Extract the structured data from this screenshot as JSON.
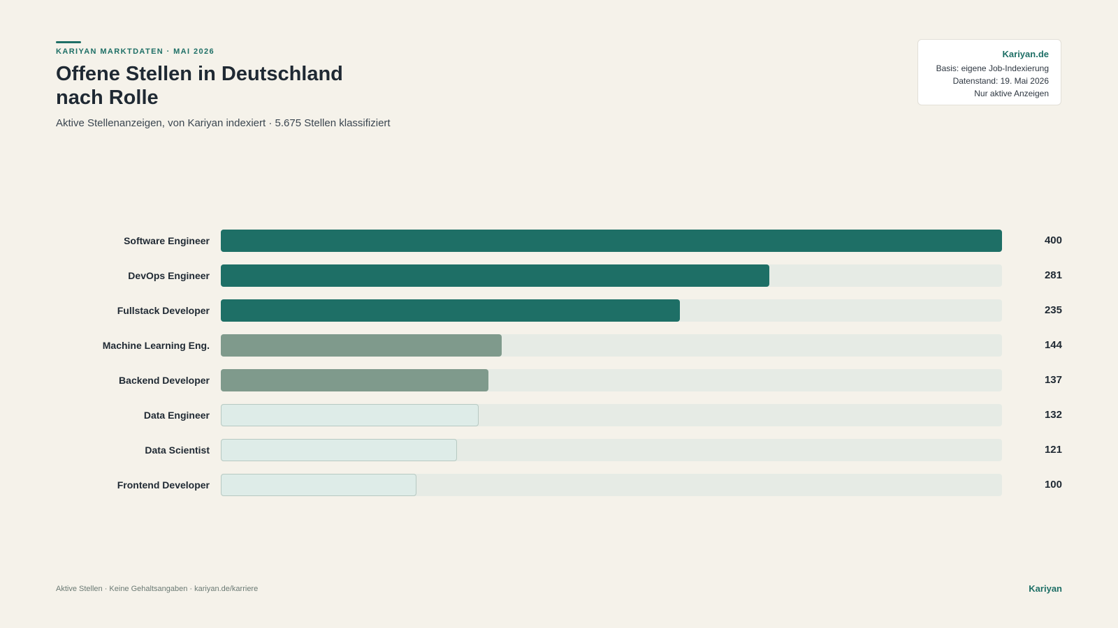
{
  "header": {
    "kicker": "KARIYAN MARKTDATEN · MAI 2026",
    "title": "Offene Stellen in Deutschland nach Rolle",
    "subtitle": "Aktive Stellenanzeigen, von Kariyan indexiert · 5.675 Stellen klassifiziert"
  },
  "info_box": {
    "brand": "Kariyan.de",
    "line1": "Basis: eigene Job-Indexierung",
    "line2": "Datenstand: 19. Mai 2026",
    "line3": "Nur aktive Anzeigen"
  },
  "footer": {
    "left": "Aktive Stellen · Keine Gehaltsangaben · kariyan.de/karriere",
    "right": "Kariyan"
  },
  "colors": {
    "accent": "#1e6f66",
    "tier_high": "#1e6f66",
    "tier_mid": "#7f9a8c",
    "tier_low": "#deece8",
    "tier_low_border": "#b7c9c2",
    "track": "#e6ebe5",
    "background": "#f5f2ea"
  },
  "chart_data": {
    "type": "bar",
    "orientation": "horizontal",
    "categories": [
      "Software Engineer",
      "DevOps Engineer",
      "Fullstack Developer",
      "Machine Learning Eng.",
      "Backend Developer",
      "Data Engineer",
      "Data Scientist",
      "Frontend Developer"
    ],
    "values": [
      400,
      281,
      235,
      144,
      137,
      132,
      121,
      100
    ],
    "tiers": [
      "high",
      "high",
      "high",
      "mid",
      "mid",
      "low",
      "low",
      "low"
    ],
    "xlim": [
      0,
      400
    ],
    "grid": false,
    "legend": "none",
    "title": "Offene Stellen in Deutschland nach Rolle",
    "xlabel": "",
    "ylabel": ""
  }
}
